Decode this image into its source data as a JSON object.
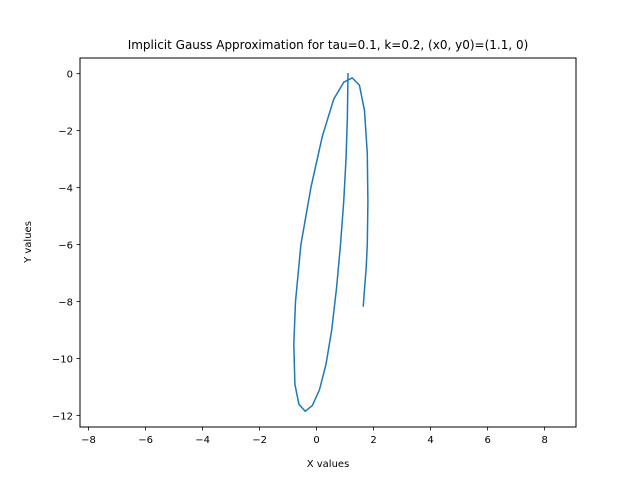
{
  "chart_data": {
    "type": "line",
    "title": "Implicit Gauss Approximation for tau=0.1, k=0.2, (x0, y0)=(1.1, 0)",
    "xlabel": "X values",
    "ylabel": "Y values",
    "xlim": [
      -8.3,
      9.1
    ],
    "ylim": [
      -12.4,
      0.55
    ],
    "xticks": [
      -8,
      -6,
      -4,
      -2,
      0,
      2,
      4,
      6,
      8
    ],
    "yticks": [
      0,
      -2,
      -4,
      -6,
      -8,
      -10,
      -12
    ],
    "grid": false,
    "line_color": "#1f77b4",
    "series": [
      {
        "x": [
          1.1,
          1.08,
          1.03,
          0.95,
          0.84,
          0.7,
          0.53,
          0.33,
          0.1,
          -0.15,
          -0.4,
          -0.62,
          -0.76,
          -0.8,
          -0.74,
          -0.55,
          -0.2,
          0.2,
          0.6,
          0.95,
          1.25,
          1.5,
          1.68,
          1.78,
          1.8,
          1.78,
          1.74,
          1.7,
          1.67,
          1.65,
          1.64
        ],
        "y": [
          0.0,
          -1.5,
          -3.0,
          -4.5,
          -6.0,
          -7.5,
          -9.0,
          -10.2,
          -11.1,
          -11.65,
          -11.85,
          -11.6,
          -10.9,
          -9.5,
          -8.0,
          -6.0,
          -4.0,
          -2.2,
          -0.9,
          -0.3,
          -0.15,
          -0.4,
          -1.3,
          -2.8,
          -4.5,
          -6.0,
          -6.8,
          -7.3,
          -7.7,
          -8.0,
          -8.15
        ]
      }
    ]
  }
}
